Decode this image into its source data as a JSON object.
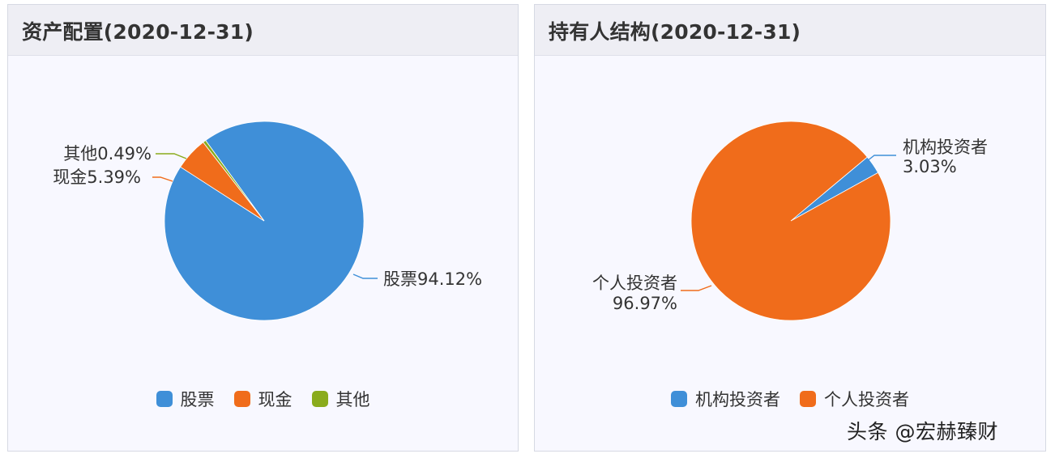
{
  "panels": {
    "asset": {
      "title": "资产配置(2020-12-31)",
      "legend": [
        {
          "label": "股票",
          "color": "#3f8fd8"
        },
        {
          "label": "现金",
          "color": "#f06c1b"
        },
        {
          "label": "其他",
          "color": "#8aab1c"
        }
      ],
      "labels": {
        "stock": "股票94.12%",
        "cash": "现金5.39%",
        "other": "其他0.49%"
      }
    },
    "holder": {
      "title": "持有人结构(2020-12-31)",
      "legend": [
        {
          "label": "机构投资者",
          "color": "#3f8fd8"
        },
        {
          "label": "个人投资者",
          "color": "#f06c1b"
        }
      ],
      "labels": {
        "inst_name": "机构投资者",
        "inst_value": "3.03%",
        "indiv_name": "个人投资者",
        "indiv_value": "96.97%"
      }
    }
  },
  "watermark": "头条 @宏赫臻财",
  "chart_data": [
    {
      "type": "pie",
      "title": "资产配置(2020-12-31)",
      "categories": [
        "股票",
        "现金",
        "其他"
      ],
      "values": [
        94.12,
        5.39,
        0.49
      ],
      "unit": "%",
      "colors": [
        "#3f8fd8",
        "#f06c1b",
        "#8aab1c"
      ],
      "legend": "bottom"
    },
    {
      "type": "pie",
      "title": "持有人结构(2020-12-31)",
      "categories": [
        "机构投资者",
        "个人投资者"
      ],
      "values": [
        3.03,
        96.97
      ],
      "unit": "%",
      "colors": [
        "#3f8fd8",
        "#f06c1b"
      ],
      "legend": "bottom"
    }
  ]
}
